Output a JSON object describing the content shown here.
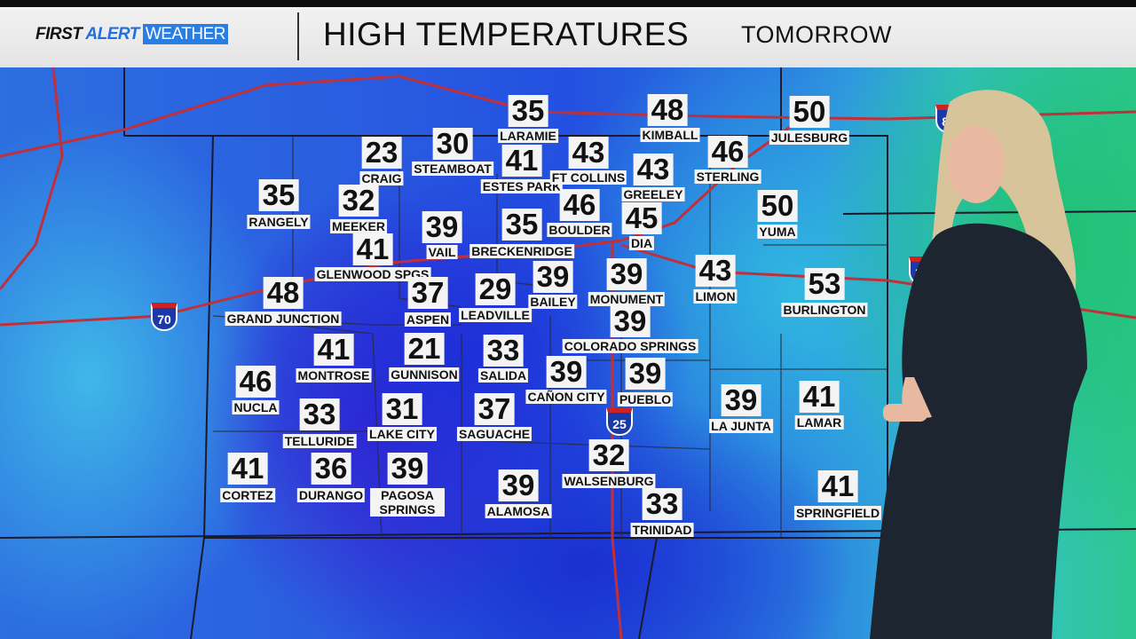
{
  "header": {
    "logo": {
      "first": "FIRST",
      "alert": "ALERT",
      "weather": "WEATHER"
    },
    "title": "HIGH TEMPERATURES",
    "subtitle": "TOMORROW"
  },
  "highways": [
    "70",
    "25",
    "70",
    "80"
  ],
  "colors": {
    "cold": "#2a3ad8",
    "mild": "#35c0d8",
    "warm": "#2ec890",
    "roads": "#c0303a"
  },
  "cities": [
    {
      "name": "LARAMIE",
      "temp": "35"
    },
    {
      "name": "KIMBALL",
      "temp": "48"
    },
    {
      "name": "JULESBURG",
      "temp": "50"
    },
    {
      "name": "CRAIG",
      "temp": "23"
    },
    {
      "name": "STEAMBOAT",
      "temp": "30"
    },
    {
      "name": "ESTES PARK",
      "temp": "41"
    },
    {
      "name": "FT COLLINS",
      "temp": "43"
    },
    {
      "name": "GREELEY",
      "temp": "43"
    },
    {
      "name": "STERLING",
      "temp": "46"
    },
    {
      "name": "RANGELY",
      "temp": "35"
    },
    {
      "name": "MEEKER",
      "temp": "32"
    },
    {
      "name": "VAIL",
      "temp": "39"
    },
    {
      "name": "BRECKENRIDGE",
      "temp": "35"
    },
    {
      "name": "BOULDER",
      "temp": "46"
    },
    {
      "name": "DIA",
      "temp": "45"
    },
    {
      "name": "YUMA",
      "temp": "50"
    },
    {
      "name": "GLENWOOD SPGS",
      "temp": "41"
    },
    {
      "name": "ASPEN",
      "temp": "37"
    },
    {
      "name": "LEADVILLE",
      "temp": "29"
    },
    {
      "name": "BAILEY",
      "temp": "39"
    },
    {
      "name": "MONUMENT",
      "temp": "39"
    },
    {
      "name": "LIMON",
      "temp": "43"
    },
    {
      "name": "BURLINGTON",
      "temp": "53"
    },
    {
      "name": "GRAND JUNCTION",
      "temp": "48"
    },
    {
      "name": "COLORADO SPRINGS",
      "temp": "39"
    },
    {
      "name": "MONTROSE",
      "temp": "41"
    },
    {
      "name": "GUNNISON",
      "temp": "21"
    },
    {
      "name": "SALIDA",
      "temp": "33"
    },
    {
      "name": "CAÑON CITY",
      "temp": "39"
    },
    {
      "name": "PUEBLO",
      "temp": "39"
    },
    {
      "name": "LA JUNTA",
      "temp": "39"
    },
    {
      "name": "LAMAR",
      "temp": "41"
    },
    {
      "name": "NUCLA",
      "temp": "46"
    },
    {
      "name": "TELLURIDE",
      "temp": "33"
    },
    {
      "name": "LAKE CITY",
      "temp": "31"
    },
    {
      "name": "SAGUACHE",
      "temp": "37"
    },
    {
      "name": "WALSENBURG",
      "temp": "32"
    },
    {
      "name": "CORTEZ",
      "temp": "41"
    },
    {
      "name": "DURANGO",
      "temp": "36"
    },
    {
      "name": "PAGOSA SPRINGS",
      "temp": "39"
    },
    {
      "name": "ALAMOSA",
      "temp": "39"
    },
    {
      "name": "TRINIDAD",
      "temp": "33"
    },
    {
      "name": "SPRINGFIELD",
      "temp": "41"
    }
  ]
}
